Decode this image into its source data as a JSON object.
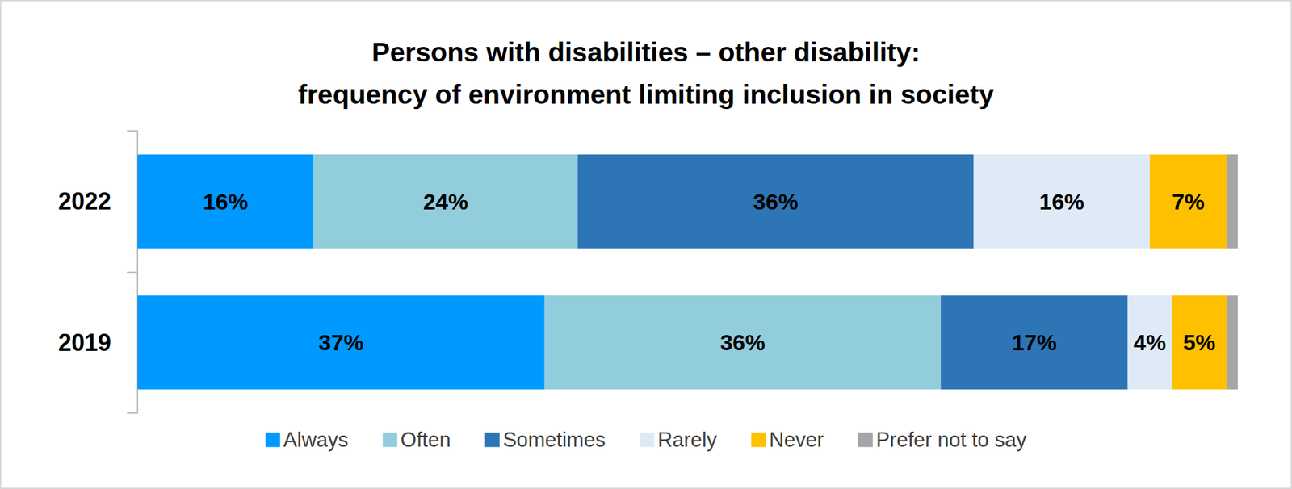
{
  "chart_data": {
    "type": "bar",
    "title": "Persons with disabilities – other disability:\nfrequency of environment limiting inclusion in society",
    "orientation": "horizontal",
    "stacked": true,
    "data_labels": true,
    "tick_labels": "y",
    "legend": "bottom",
    "xlim": [
      0,
      100
    ],
    "categories": [
      "2022",
      "2019"
    ],
    "series": [
      {
        "name": "Always",
        "color": "#0099ff",
        "values": [
          16,
          37
        ],
        "value_labels": [
          "16%",
          "37%"
        ]
      },
      {
        "name": "Often",
        "color": "#92cddc",
        "values": [
          24,
          36
        ],
        "value_labels": [
          "24%",
          "36%"
        ]
      },
      {
        "name": "Sometimes",
        "color": "#2e75b6",
        "values": [
          36,
          17
        ],
        "value_labels": [
          "36%",
          "17%"
        ]
      },
      {
        "name": "Rarely",
        "color": "#deebf7",
        "values": [
          16,
          4
        ],
        "value_labels": [
          "16%",
          "4%"
        ]
      },
      {
        "name": "Never",
        "color": "#ffc000",
        "values": [
          7,
          5
        ],
        "value_labels": [
          "7%",
          "5%"
        ]
      },
      {
        "name": "Prefer not to say",
        "color": "#a6a6a6",
        "values": [
          1,
          1
        ],
        "data_labels": false
      }
    ]
  }
}
